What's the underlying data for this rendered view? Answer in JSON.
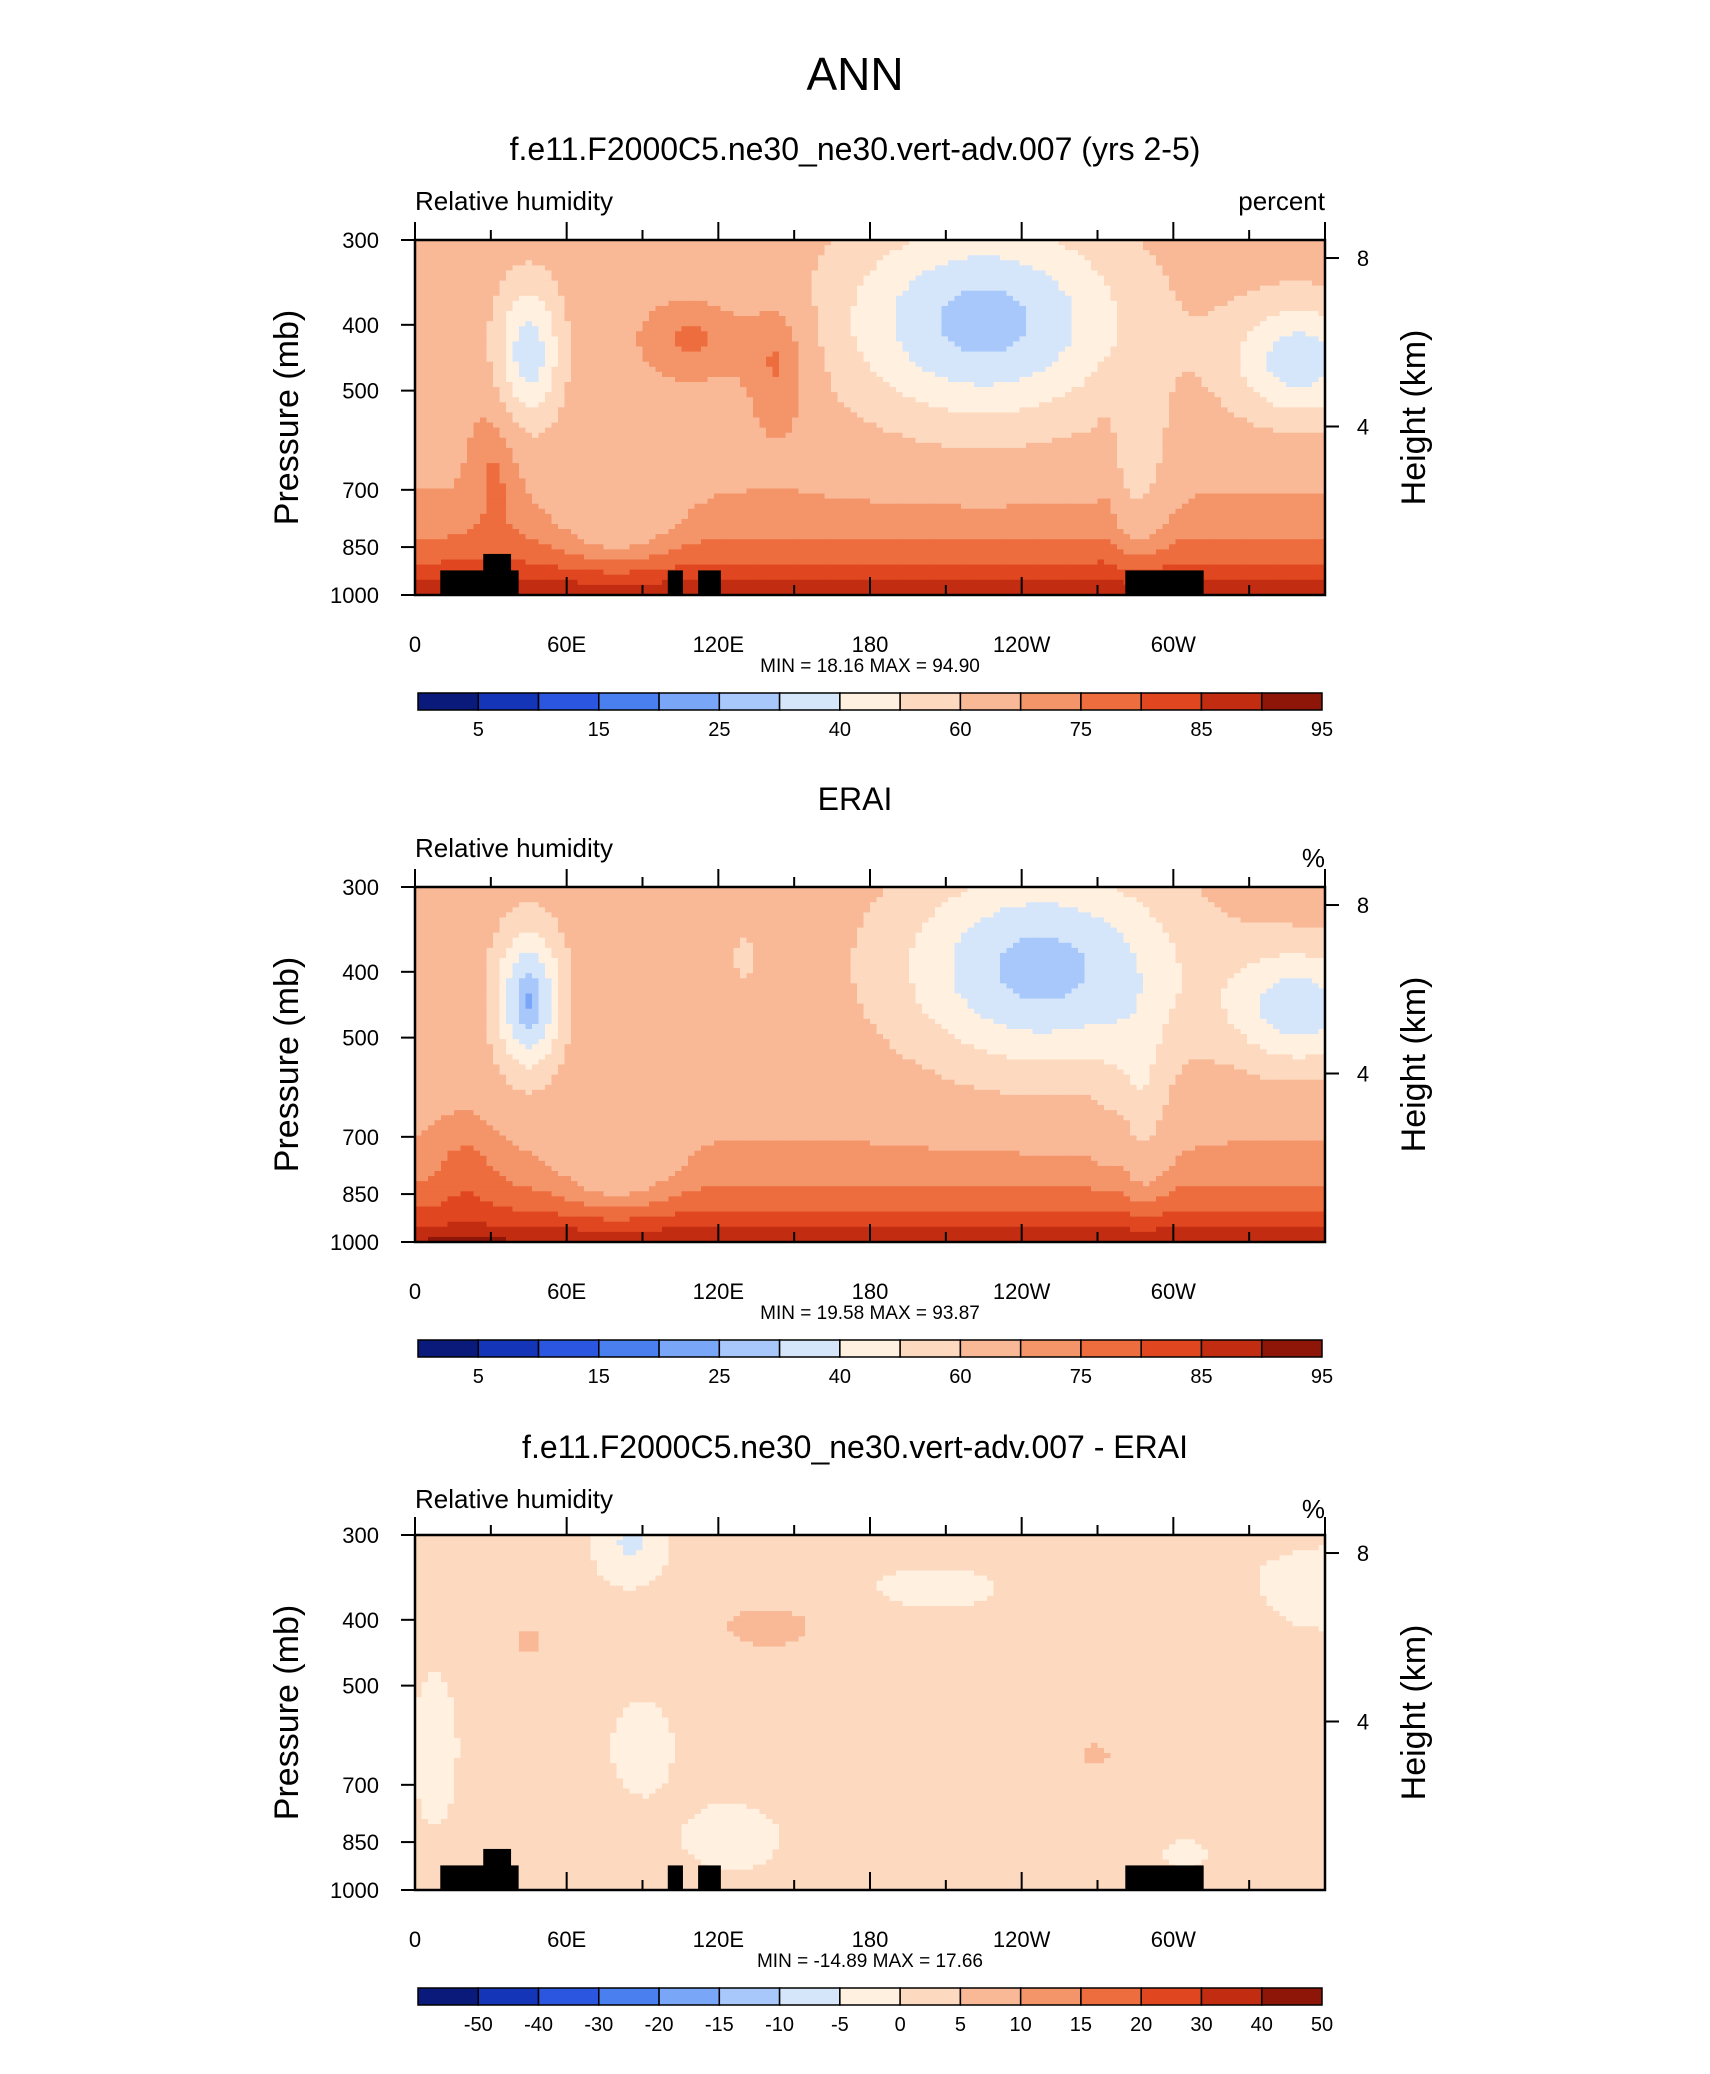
{
  "page_title": "ANN",
  "chart_data": [
    {
      "type": "heatmap",
      "title": "f.e11.F2000C5.ne30_ne30.vert-adv.007 (yrs 2-5)",
      "left_label": "Relative humidity",
      "right_label": "percent",
      "ylabel": "Pressure (mb)",
      "y2label": "Height (km)",
      "x_ticks": [
        {
          "lon": 0,
          "label": "0"
        },
        {
          "lon": 60,
          "label": "60E"
        },
        {
          "lon": 120,
          "label": "120E"
        },
        {
          "lon": 180,
          "label": "180"
        },
        {
          "lon": 240,
          "label": "120W"
        },
        {
          "lon": 300,
          "label": "60W"
        }
      ],
      "xlim": [
        0,
        360
      ],
      "y_ticks": [
        300,
        400,
        500,
        700,
        850,
        1000
      ],
      "y_tick_labels": [
        "300",
        "400",
        "500",
        "700",
        "850",
        "1000"
      ],
      "ylim": [
        1000,
        300
      ],
      "y_scale": "log",
      "y2_ticks": [
        {
          "km": 8,
          "label": "8"
        },
        {
          "km": 4,
          "label": "4"
        }
      ],
      "stats": "MIN =  18.16  MAX =  94.90",
      "colorbar_labels": [
        "5",
        "15",
        "25",
        "40",
        "60",
        "75",
        "85",
        "95"
      ],
      "field": "model"
    },
    {
      "type": "heatmap",
      "title": "ERAI",
      "left_label": "Relative humidity",
      "right_label": "%",
      "ylabel": "Pressure (mb)",
      "y2label": "Height (km)",
      "x_ticks": [
        {
          "lon": 0,
          "label": "0"
        },
        {
          "lon": 60,
          "label": "60E"
        },
        {
          "lon": 120,
          "label": "120E"
        },
        {
          "lon": 180,
          "label": "180"
        },
        {
          "lon": 240,
          "label": "120W"
        },
        {
          "lon": 300,
          "label": "60W"
        }
      ],
      "xlim": [
        0,
        360
      ],
      "y_ticks": [
        300,
        400,
        500,
        700,
        850,
        1000
      ],
      "y_tick_labels": [
        "300",
        "400",
        "500",
        "700",
        "850",
        "1000"
      ],
      "ylim": [
        1000,
        300
      ],
      "y_scale": "log",
      "y2_ticks": [
        {
          "km": 8,
          "label": "8"
        },
        {
          "km": 4,
          "label": "4"
        }
      ],
      "stats": "MIN =  19.58  MAX =  93.87",
      "colorbar_labels": [
        "5",
        "15",
        "25",
        "40",
        "60",
        "75",
        "85",
        "95"
      ],
      "field": "obs"
    },
    {
      "type": "heatmap",
      "title": "f.e11.F2000C5.ne30_ne30.vert-adv.007 - ERAI",
      "left_label": "Relative humidity",
      "right_label": "%",
      "ylabel": "Pressure (mb)",
      "y2label": "Height (km)",
      "x_ticks": [
        {
          "lon": 0,
          "label": "0"
        },
        {
          "lon": 60,
          "label": "60E"
        },
        {
          "lon": 120,
          "label": "120E"
        },
        {
          "lon": 180,
          "label": "180"
        },
        {
          "lon": 240,
          "label": "120W"
        },
        {
          "lon": 300,
          "label": "60W"
        }
      ],
      "xlim": [
        0,
        360
      ],
      "y_ticks": [
        300,
        400,
        500,
        700,
        850,
        1000
      ],
      "y_tick_labels": [
        "300",
        "400",
        "500",
        "700",
        "850",
        "1000"
      ],
      "ylim": [
        1000,
        300
      ],
      "y_scale": "log",
      "y2_ticks": [
        {
          "km": 8,
          "label": "8"
        },
        {
          "km": 4,
          "label": "4"
        }
      ],
      "stats": "MIN = -14.89  MAX =  17.66",
      "colorbar_labels": [
        "-50",
        "-40",
        "-30",
        "-20",
        "-15",
        "-10",
        "-5",
        "0",
        "5",
        "10",
        "15",
        "20",
        "30",
        "40",
        "50"
      ],
      "field": "diff"
    }
  ],
  "colors": {
    "rh_colorbar": [
      "#0a1a7a",
      "#1535b8",
      "#2b56e0",
      "#4a7ff0",
      "#7aa6f8",
      "#a8c8fb",
      "#d5e6fb",
      "#fff0e0",
      "#fcd9bf",
      "#f9b896",
      "#f49469",
      "#ed6d3f",
      "#e04720",
      "#c22d12",
      "#8e1608"
    ],
    "diff_colorbar": [
      "#0a1a7a",
      "#1535b8",
      "#2b56e0",
      "#4a7ff0",
      "#7aa6f8",
      "#a8c8fb",
      "#d5e6fb",
      "#fff0e0",
      "#fcd9bf",
      "#f9b896",
      "#f49469",
      "#ed6d3f",
      "#e04720",
      "#c22d12",
      "#8e1608"
    ],
    "topography": "#000000"
  }
}
